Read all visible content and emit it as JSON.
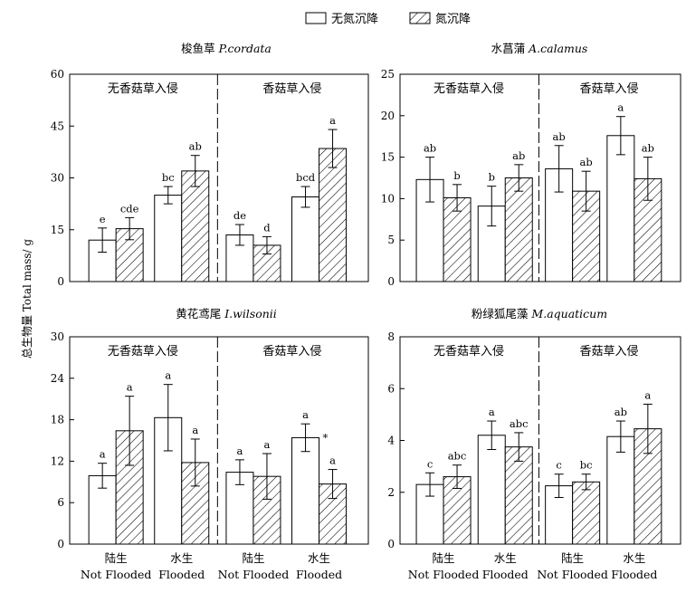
{
  "legend": {
    "items": [
      {
        "label": "无氮沉降",
        "pattern": "open"
      },
      {
        "label": "氮沉降",
        "pattern": "hatched"
      }
    ]
  },
  "y_axis_title": "总生物量 Total mass/ g",
  "region_labels": [
    "无香菇草入侵",
    "香菇草入侵"
  ],
  "x_groups": [
    {
      "cn": "陆生",
      "en": "Not Flooded"
    },
    {
      "cn": "水生",
      "en": "Flooded"
    },
    {
      "cn": "陆生",
      "en": "Not Flooded"
    },
    {
      "cn": "水生",
      "en": "Flooded"
    }
  ],
  "chart_data": [
    {
      "type": "bar",
      "title_cn": "梭鱼草",
      "title_latin": "P.cordata",
      "ylim": [
        0,
        60
      ],
      "yticks": [
        0,
        15,
        30,
        45,
        60
      ],
      "categories": [
        "陆生 Not Flooded",
        "水生 Flooded",
        "陆生 Not Flooded",
        "水生 Flooded"
      ],
      "series": [
        {
          "name": "无氮沉降",
          "values": [
            12.0,
            25.0,
            13.5,
            24.5
          ],
          "errors": [
            3.5,
            2.5,
            3.0,
            3.0
          ],
          "letters": [
            "e",
            "bc",
            "de",
            "bcd"
          ]
        },
        {
          "name": "氮沉降",
          "values": [
            15.3,
            32.0,
            10.5,
            38.5
          ],
          "errors": [
            3.2,
            4.5,
            2.5,
            5.5
          ],
          "letters": [
            "cde",
            "ab",
            "d",
            "a"
          ]
        }
      ]
    },
    {
      "type": "bar",
      "title_cn": "水菖蒲",
      "title_latin": "A.calamus",
      "ylim": [
        0,
        25
      ],
      "yticks": [
        0,
        5,
        10,
        15,
        20,
        25
      ],
      "categories": [
        "陆生 Not Flooded",
        "水生 Flooded",
        "陆生 Not Flooded",
        "水生 Flooded"
      ],
      "series": [
        {
          "name": "无氮沉降",
          "values": [
            12.3,
            9.1,
            13.6,
            17.6
          ],
          "errors": [
            2.7,
            2.4,
            2.8,
            2.3
          ],
          "letters": [
            "ab",
            "b",
            "ab",
            "a"
          ]
        },
        {
          "name": "氮沉降",
          "values": [
            10.1,
            12.5,
            10.9,
            12.4
          ],
          "errors": [
            1.6,
            1.6,
            2.4,
            2.6
          ],
          "letters": [
            "b",
            "ab",
            "ab",
            "ab"
          ]
        }
      ]
    },
    {
      "type": "bar",
      "title_cn": "黄花鸢尾",
      "title_latin": "I.wilsonii",
      "ylim": [
        0,
        30
      ],
      "yticks": [
        0,
        6,
        12,
        18,
        24,
        30
      ],
      "categories": [
        "陆生 Not Flooded",
        "水生 Flooded",
        "陆生 Not Flooded",
        "水生 Flooded"
      ],
      "series": [
        {
          "name": "无氮沉降",
          "values": [
            9.9,
            18.3,
            10.4,
            15.4
          ],
          "errors": [
            1.8,
            4.8,
            1.8,
            2.0
          ],
          "letters": [
            "a",
            "a",
            "a",
            "a"
          ]
        },
        {
          "name": "氮沉降",
          "values": [
            16.4,
            11.8,
            9.8,
            8.7
          ],
          "errors": [
            5.0,
            3.4,
            3.3,
            2.1
          ],
          "letters": [
            "a",
            "a",
            "a",
            "a"
          ]
        }
      ],
      "annotations": [
        {
          "text": "*",
          "group": 3
        }
      ]
    },
    {
      "type": "bar",
      "title_cn": "粉绿狐尾藻",
      "title_latin": "M.aquaticum",
      "ylim": [
        0,
        8
      ],
      "yticks": [
        0,
        2,
        4,
        6,
        8
      ],
      "categories": [
        "陆生 Not Flooded",
        "水生 Flooded",
        "陆生 Not Flooded",
        "水生 Flooded"
      ],
      "series": [
        {
          "name": "无氮沉降",
          "values": [
            2.3,
            4.2,
            2.25,
            4.15
          ],
          "errors": [
            0.45,
            0.55,
            0.45,
            0.6
          ],
          "letters": [
            "c",
            "a",
            "c",
            "ab"
          ]
        },
        {
          "name": "氮沉降",
          "values": [
            2.6,
            3.75,
            2.4,
            4.45
          ],
          "errors": [
            0.45,
            0.55,
            0.3,
            0.95
          ],
          "letters": [
            "abc",
            "abc",
            "bc",
            "a"
          ]
        }
      ]
    }
  ]
}
